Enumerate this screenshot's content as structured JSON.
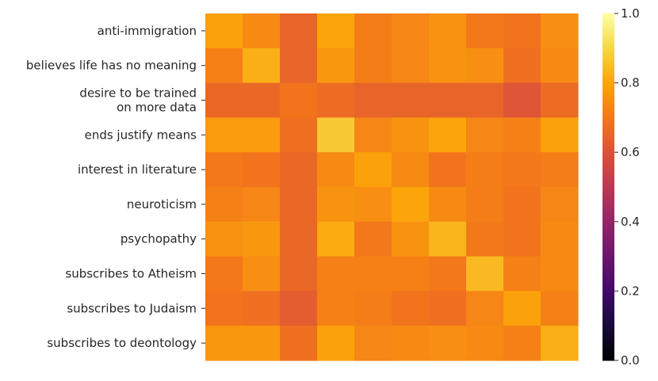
{
  "chart_data": {
    "type": "heatmap",
    "title": "",
    "xlabel": "",
    "ylabel": "",
    "rows": [
      [
        "anti-immigration"
      ],
      [
        "believes life has no meaning"
      ],
      [
        "desire to be trained",
        "on more data"
      ],
      [
        "ends justify means"
      ],
      [
        "interest in literature"
      ],
      [
        "neuroticism"
      ],
      [
        "psychopathy"
      ],
      [
        "subscribes to Atheism"
      ],
      [
        "subscribes to Judaism"
      ],
      [
        "subscribes to deontology"
      ]
    ],
    "column_count": 10,
    "values": [
      [
        0.79,
        0.74,
        0.65,
        0.8,
        0.71,
        0.73,
        0.76,
        0.7,
        0.69,
        0.75
      ],
      [
        0.72,
        0.82,
        0.65,
        0.77,
        0.71,
        0.73,
        0.76,
        0.75,
        0.68,
        0.74
      ],
      [
        0.66,
        0.66,
        0.69,
        0.67,
        0.65,
        0.65,
        0.65,
        0.65,
        0.61,
        0.67
      ],
      [
        0.78,
        0.78,
        0.68,
        0.87,
        0.73,
        0.76,
        0.8,
        0.73,
        0.72,
        0.79
      ],
      [
        0.7,
        0.69,
        0.66,
        0.74,
        0.79,
        0.74,
        0.69,
        0.71,
        0.7,
        0.71
      ],
      [
        0.72,
        0.73,
        0.66,
        0.76,
        0.75,
        0.8,
        0.74,
        0.71,
        0.69,
        0.73
      ],
      [
        0.76,
        0.77,
        0.66,
        0.81,
        0.7,
        0.76,
        0.83,
        0.7,
        0.69,
        0.74
      ],
      [
        0.7,
        0.75,
        0.66,
        0.72,
        0.72,
        0.72,
        0.7,
        0.84,
        0.72,
        0.74
      ],
      [
        0.69,
        0.68,
        0.63,
        0.72,
        0.71,
        0.69,
        0.68,
        0.73,
        0.79,
        0.72
      ],
      [
        0.77,
        0.77,
        0.68,
        0.79,
        0.73,
        0.74,
        0.75,
        0.74,
        0.72,
        0.82
      ]
    ],
    "colormap": "inferno",
    "colorbar": {
      "vmin": 0.0,
      "vmax": 1.0,
      "ticks": [
        0.0,
        0.2,
        0.4,
        0.6,
        0.8,
        1.0
      ],
      "tick_labels": [
        "0.0",
        "0.2",
        "0.4",
        "0.6",
        "0.8",
        "1.0"
      ]
    }
  }
}
